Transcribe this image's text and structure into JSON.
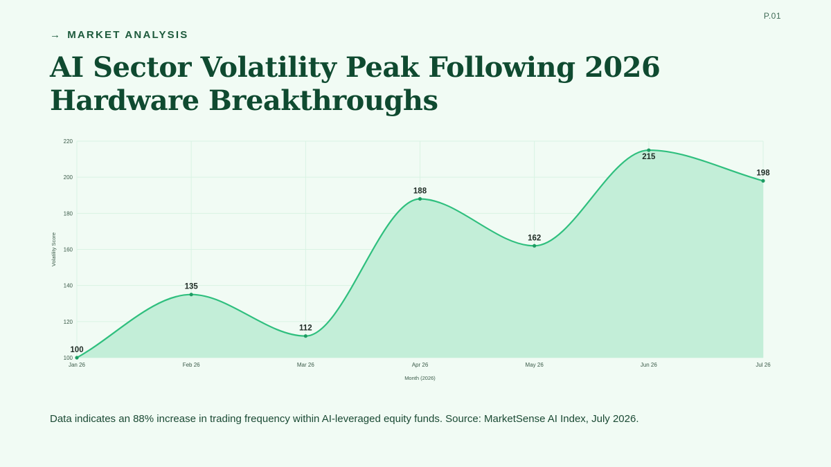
{
  "page": {
    "number": "P.01",
    "eyebrow": "MARKET ANALYSIS",
    "eyebrow_arrow": "→",
    "title": "AI Sector Volatility Peak Following 2026 Hardware Breakthroughs",
    "footnote": "Data indicates an 88% increase in trading frequency within AI-leveraged equity funds. Source: MarketSense AI Index, July 2026."
  },
  "colors": {
    "background": "#f1fbf4",
    "line": "#2fbf7e",
    "fill": "#c3eed8",
    "point": "#1e9c63",
    "grid": "#d9f3e3",
    "title": "#0f4a30"
  },
  "chart_data": {
    "type": "area",
    "categories": [
      "Jan 26",
      "Feb 26",
      "Mar 26",
      "Apr 26",
      "May 26",
      "Jun 26",
      "Jul 26"
    ],
    "series": [
      {
        "values": [
          100,
          135,
          112,
          188,
          162,
          215,
          198
        ]
      }
    ],
    "xlabel": "Month (2026)",
    "ylabel": "Volatility Score",
    "ylim": [
      100,
      220
    ],
    "yticks": [
      100,
      120,
      140,
      160,
      180,
      200,
      220
    ],
    "grid": true,
    "smooth": true,
    "data_labels": true
  }
}
